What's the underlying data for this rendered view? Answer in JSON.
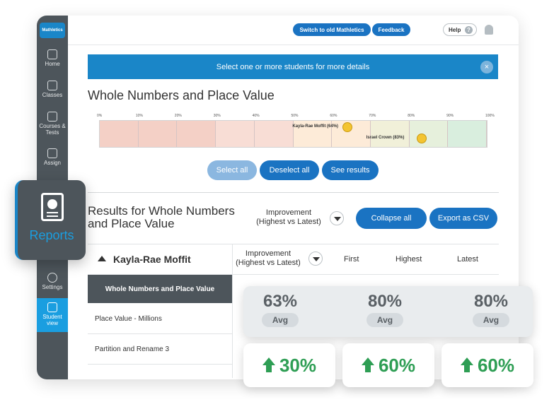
{
  "logo": "Mathletics",
  "nav": {
    "home": "Home",
    "classes": "Classes",
    "courses": "Courses & Tests",
    "assign": "Assign",
    "settings": "Settings",
    "student_view": "Student view"
  },
  "topbar": {
    "switch_label": "Switch to old Mathletics",
    "feedback_label": "Feedback",
    "help_label": "Help"
  },
  "banner": {
    "text": "Select one or more students for more details",
    "close": "×"
  },
  "section_title": "Whole Numbers and Place Value",
  "scale": [
    "0%",
    "10%",
    "20%",
    "30%",
    "40%",
    "50%",
    "60%",
    "70%",
    "80%",
    "90%",
    "100%"
  ],
  "markers": [
    {
      "label": "Kayla-Rae Moffit (64%)",
      "value": 64
    },
    {
      "label": "Israel Crown (83%)",
      "value": 83
    }
  ],
  "band_colors": [
    "#f4d0c6",
    "#f4d0c6",
    "#f4d0c6",
    "#f8ddd5",
    "#f8ddd5",
    "#fdebd8",
    "#fdebd8",
    "#f1f0d9",
    "#e6f0dc",
    "#d9eede"
  ],
  "actions": {
    "select_all": "Select all",
    "deselect_all": "Deselect all",
    "see_results": "See results"
  },
  "results": {
    "title": "Results for Whole Numbers and Place Value",
    "improvement_label": "Improvement (Highest vs Latest)",
    "collapse_all": "Collapse all",
    "export_csv": "Export as CSV"
  },
  "table": {
    "student_name": "Kayla-Rae Moffit",
    "improvement_header": "Improvement (Highest vs Latest)",
    "col_first": "First",
    "col_highest": "Highest",
    "col_latest": "Latest",
    "category": "Whole Numbers and Place Value",
    "rows": [
      "Place Value - Millions",
      "Partition and Rename 3"
    ]
  },
  "reports_label": "Reports",
  "averages": [
    {
      "value": "63%",
      "badge": "Avg"
    },
    {
      "value": "80%",
      "badge": "Avg"
    },
    {
      "value": "80%",
      "badge": "Avg"
    }
  ],
  "gains": [
    "30%",
    "60%",
    "60%"
  ],
  "colors": {
    "primary": "#1a73c2",
    "banner": "#1a86c8",
    "sidebar": "#4d555b",
    "student_view": "#1a9ee0",
    "gain": "#2e9e54",
    "marker": "#f3c431"
  }
}
